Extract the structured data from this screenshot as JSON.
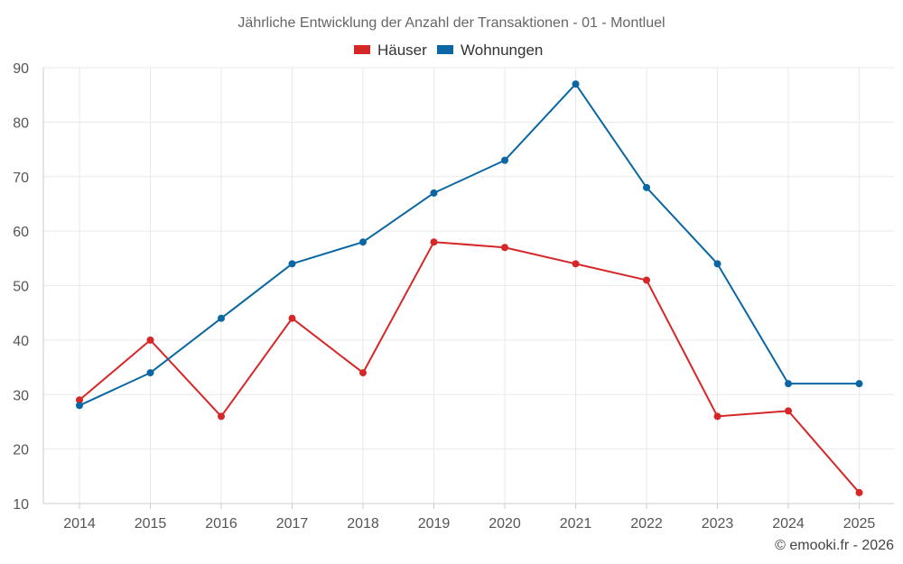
{
  "chart_data": {
    "type": "line",
    "title": "Jährliche Entwicklung der Anzahl der Transaktionen - 01 - Montluel",
    "categories": [
      "2014",
      "2015",
      "2016",
      "2017",
      "2018",
      "2019",
      "2020",
      "2021",
      "2022",
      "2023",
      "2024",
      "2025"
    ],
    "series": [
      {
        "name": "Häuser",
        "color": "#d62728",
        "values": [
          29,
          40,
          26,
          44,
          34,
          58,
          57,
          54,
          51,
          26,
          27,
          12
        ]
      },
      {
        "name": "Wohnungen",
        "color": "#0a67a3",
        "values": [
          28,
          34,
          44,
          54,
          58,
          67,
          73,
          87,
          68,
          54,
          32,
          32
        ]
      }
    ],
    "ylim": [
      10,
      90
    ],
    "yticks": [
      10,
      20,
      30,
      40,
      50,
      60,
      70,
      80,
      90
    ],
    "xlabel": "",
    "ylabel": "",
    "grid": true,
    "legend": "top-center"
  },
  "credit": "© emooki.fr - 2026"
}
